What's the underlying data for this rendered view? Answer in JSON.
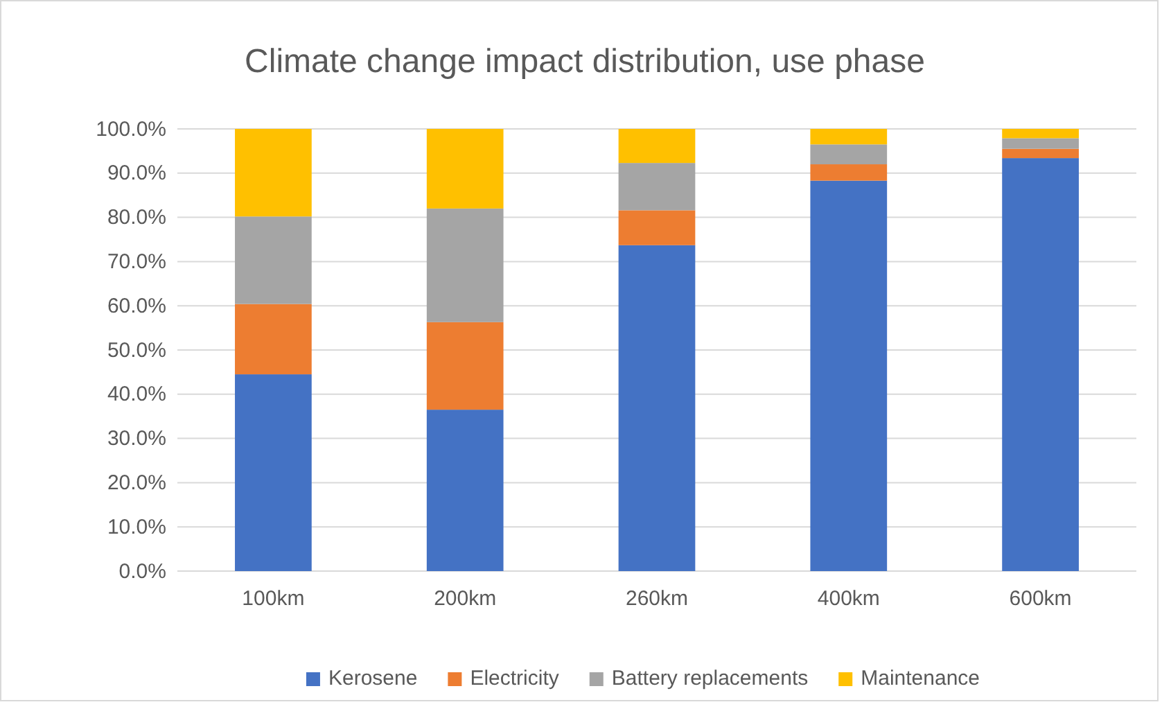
{
  "chart_data": {
    "type": "bar",
    "title": "Climate change impact distribution, use phase",
    "stacked": true,
    "categories": [
      "100km",
      "200km",
      "260km",
      "400km",
      "600km"
    ],
    "series": [
      {
        "name": "Kerosene",
        "color": "#4472c4",
        "values": [
          44.5,
          36.5,
          73.7,
          88.3,
          93.4
        ]
      },
      {
        "name": "Electricity",
        "color": "#ed7d31",
        "values": [
          15.9,
          19.8,
          7.9,
          3.7,
          2.1
        ]
      },
      {
        "name": "Battery replacements",
        "color": "#a5a5a5",
        "values": [
          19.8,
          25.7,
          10.7,
          4.5,
          2.4
        ]
      },
      {
        "name": "Maintenance",
        "color": "#ffc000",
        "values": [
          19.8,
          18.0,
          7.7,
          3.5,
          2.1
        ]
      }
    ],
    "ylim": [
      0,
      100
    ],
    "yticks": [
      {
        "value": 0,
        "label": "0.0%"
      },
      {
        "value": 10,
        "label": "10.0%"
      },
      {
        "value": 20,
        "label": "20.0%"
      },
      {
        "value": 30,
        "label": "30.0%"
      },
      {
        "value": 40,
        "label": "40.0%"
      },
      {
        "value": 50,
        "label": "50.0%"
      },
      {
        "value": 60,
        "label": "60.0%"
      },
      {
        "value": 70,
        "label": "70.0%"
      },
      {
        "value": 80,
        "label": "80.0%"
      },
      {
        "value": 90,
        "label": "90.0%"
      },
      {
        "value": 100,
        "label": "100.0%"
      }
    ],
    "grid": "y",
    "legend": "bottom"
  }
}
